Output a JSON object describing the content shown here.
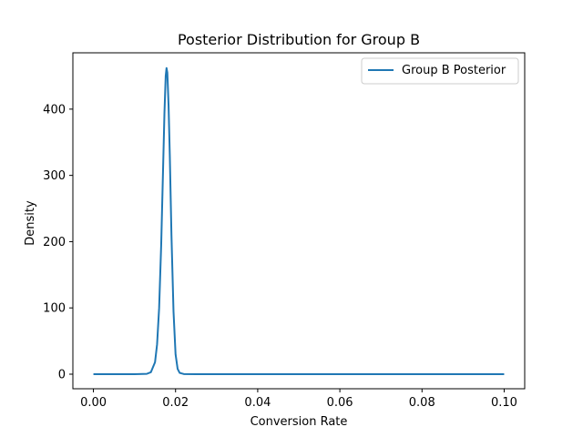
{
  "chart_data": {
    "type": "line",
    "title": "Posterior Distribution for Group B",
    "xlabel": "Conversion Rate",
    "ylabel": "Density",
    "xlim": [
      -0.005,
      0.105
    ],
    "ylim": [
      -22,
      485
    ],
    "xticks": [
      0.0,
      0.02,
      0.04,
      0.06,
      0.08,
      0.1
    ],
    "xtick_labels": [
      "0.00",
      "0.02",
      "0.04",
      "0.06",
      "0.08",
      "0.10"
    ],
    "yticks": [
      0,
      100,
      200,
      300,
      400
    ],
    "ytick_labels": [
      "0",
      "100",
      "200",
      "300",
      "400"
    ],
    "grid": false,
    "legend_position": "top-right",
    "series": [
      {
        "name": "Group B Posterior",
        "color": "#1f77b4",
        "x": [
          0.0,
          0.005,
          0.01,
          0.013,
          0.014,
          0.015,
          0.0155,
          0.016,
          0.0165,
          0.017,
          0.0173,
          0.0176,
          0.0178,
          0.018,
          0.0183,
          0.0186,
          0.019,
          0.0195,
          0.02,
          0.0205,
          0.021,
          0.022,
          0.025,
          0.03,
          0.04,
          0.05,
          0.06,
          0.07,
          0.08,
          0.09,
          0.1
        ],
        "y": [
          0,
          0,
          0,
          0.5,
          3,
          18,
          45,
          100,
          195,
          320,
          395,
          450,
          462,
          455,
          405,
          330,
          210,
          95,
          30,
          8,
          2,
          0.2,
          0,
          0,
          0,
          0,
          0,
          0,
          0,
          0,
          0
        ]
      }
    ]
  }
}
